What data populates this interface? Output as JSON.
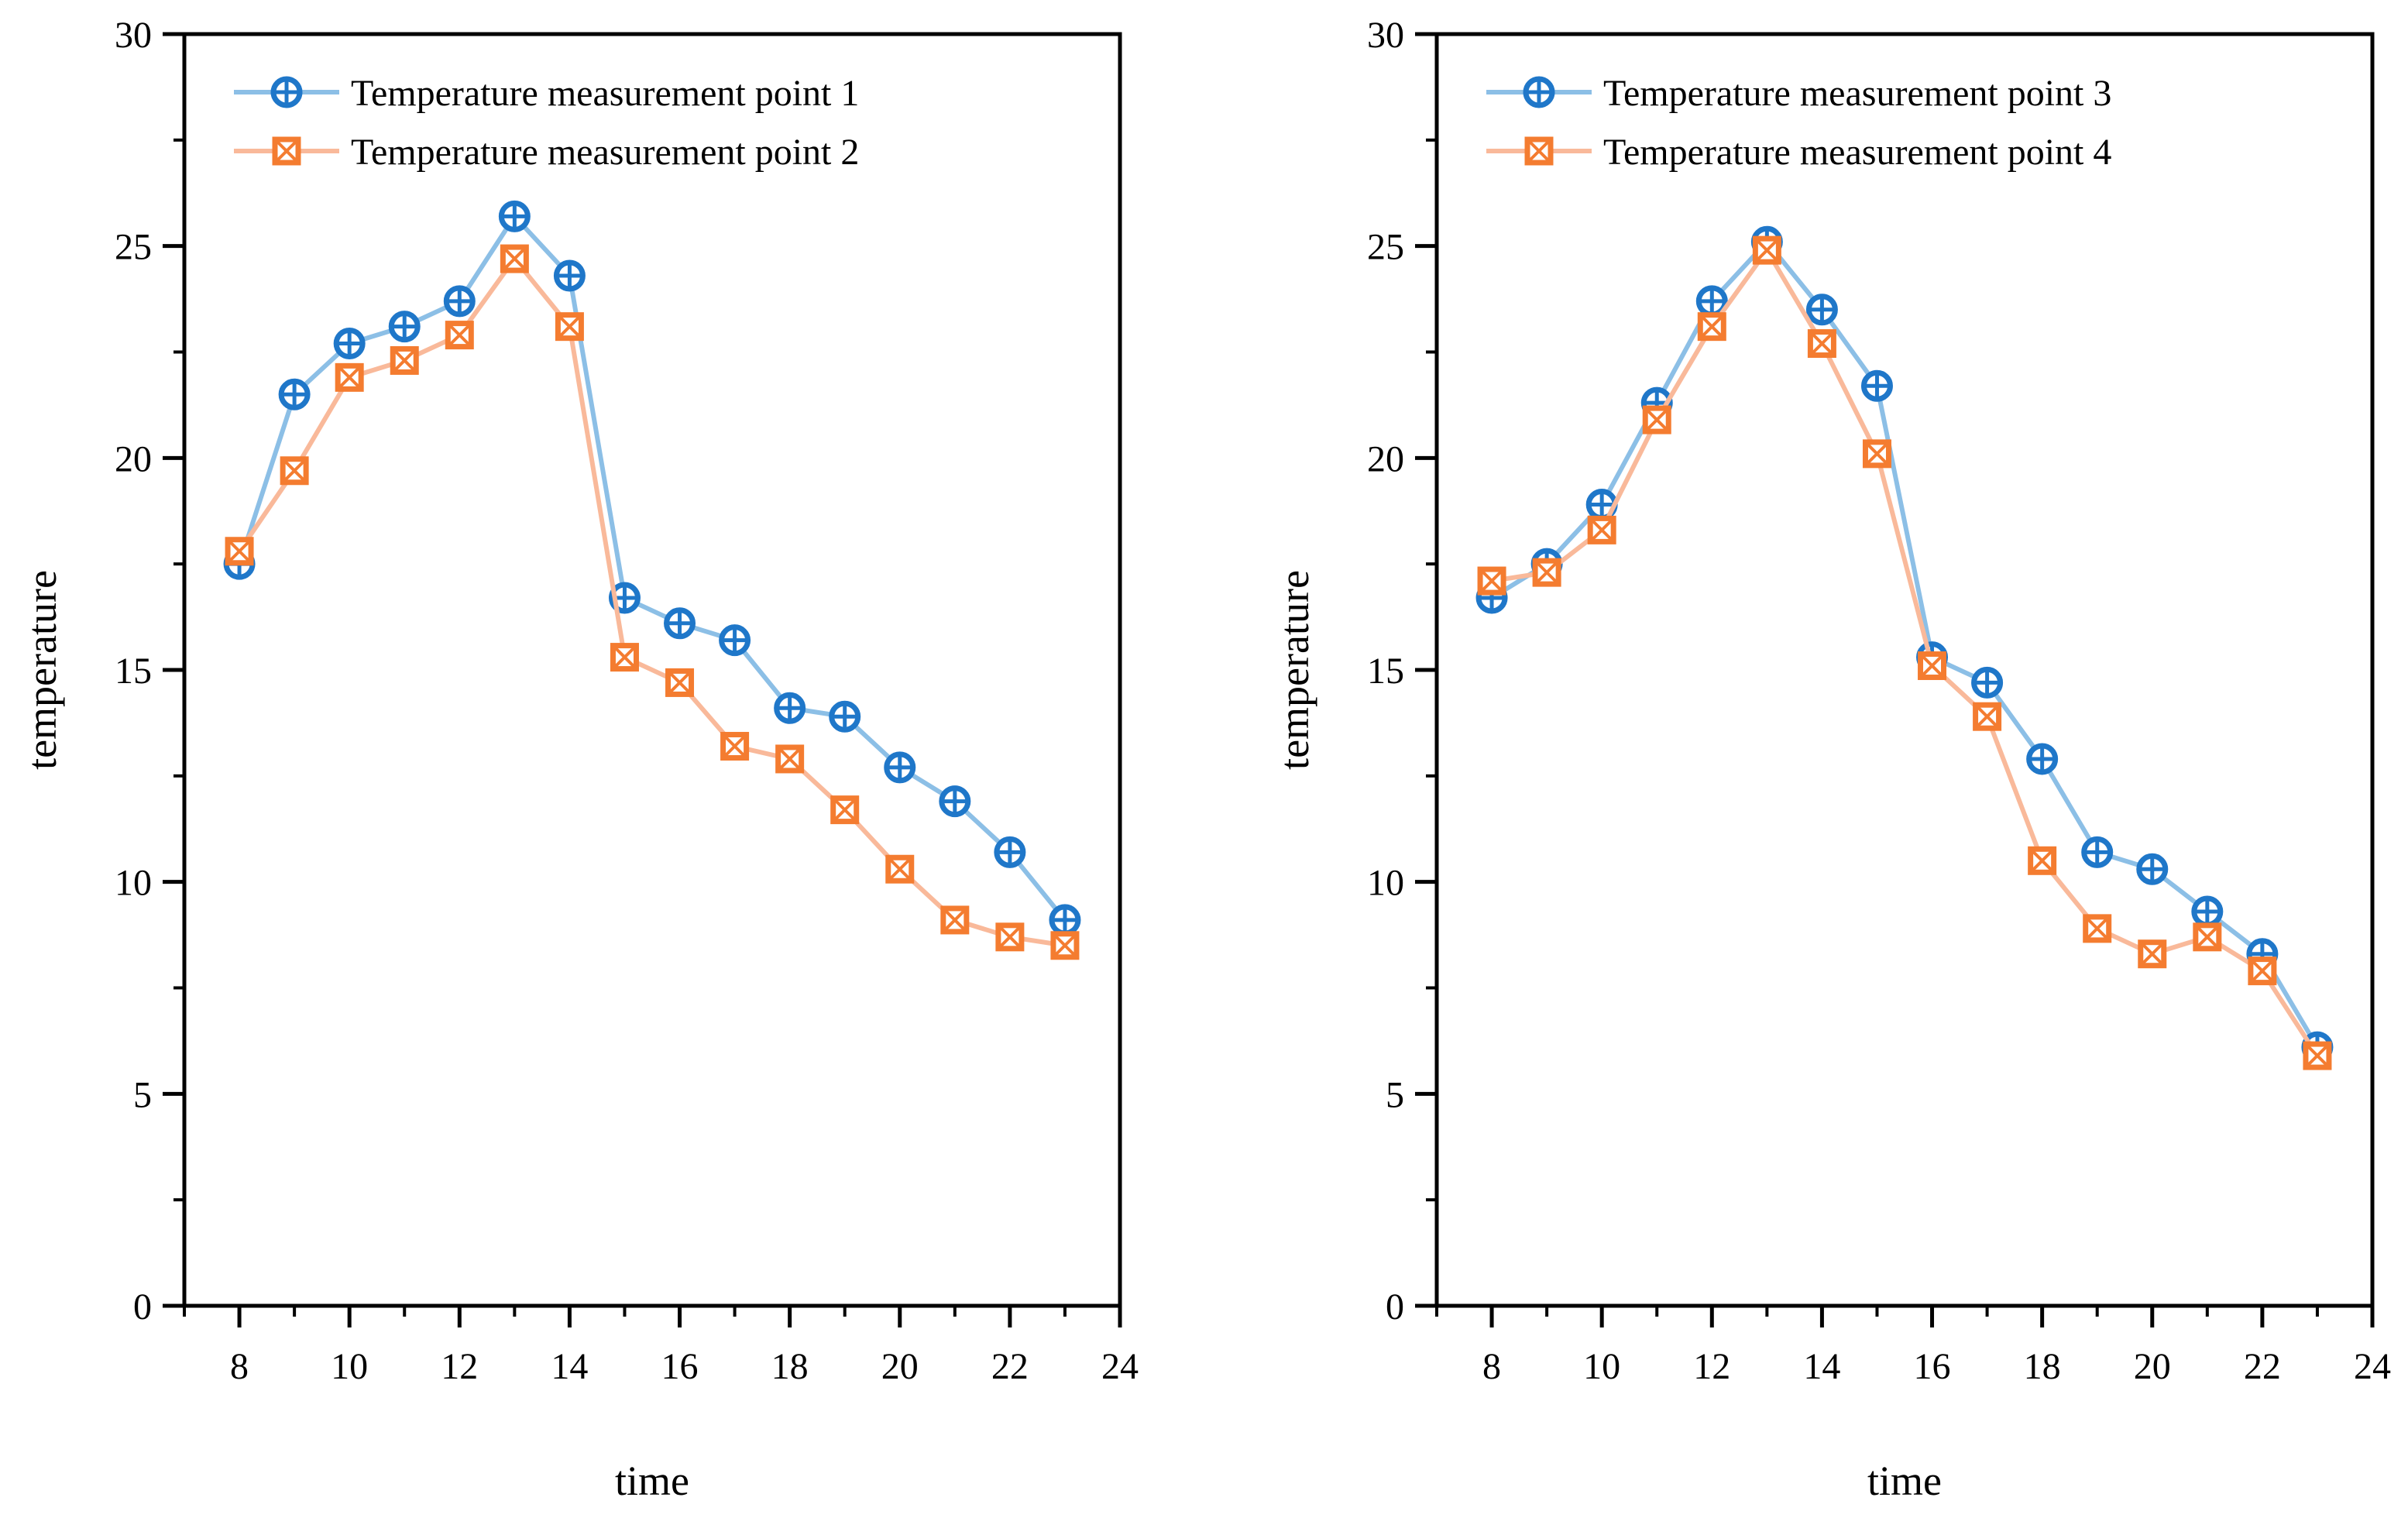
{
  "colors": {
    "series_a": "#1F77C9",
    "series_a_line": "#8CBFE6",
    "series_b": "#F47C30",
    "series_b_line": "#F9B99A",
    "axis": "#000000"
  },
  "chart_data": [
    {
      "type": "line",
      "title": "",
      "xlabel": "time",
      "ylabel": "temperature",
      "xlim": [
        7,
        24
      ],
      "ylim": [
        0,
        30
      ],
      "xticks": [
        8,
        10,
        12,
        14,
        16,
        18,
        20,
        22,
        24
      ],
      "yticks": [
        0,
        5,
        10,
        15,
        20,
        25,
        30
      ],
      "legend_position": "top-left",
      "grid": false,
      "x": [
        8,
        9,
        10,
        11,
        12,
        13,
        14,
        15,
        16,
        17,
        18,
        19,
        20,
        21,
        22,
        23
      ],
      "series": [
        {
          "name": "Temperature measurement point 1",
          "marker": "circle-plus",
          "values": [
            17.5,
            21.5,
            22.7,
            23.1,
            23.7,
            25.7,
            24.3,
            16.7,
            16.1,
            15.7,
            14.1,
            13.9,
            12.7,
            11.9,
            10.7,
            9.1
          ]
        },
        {
          "name": "Temperature measurement point 2",
          "marker": "square-x",
          "values": [
            17.8,
            19.7,
            21.9,
            22.3,
            22.9,
            24.7,
            23.1,
            15.3,
            14.7,
            13.2,
            12.9,
            11.7,
            10.3,
            9.1,
            8.7,
            8.5
          ]
        }
      ]
    },
    {
      "type": "line",
      "title": "",
      "xlabel": "time",
      "ylabel": "temperature",
      "xlim": [
        7,
        24
      ],
      "ylim": [
        0,
        30
      ],
      "xticks": [
        8,
        10,
        12,
        14,
        16,
        18,
        20,
        22,
        24
      ],
      "yticks": [
        0,
        5,
        10,
        15,
        20,
        25,
        30
      ],
      "legend_position": "top-left",
      "grid": false,
      "x": [
        8,
        9,
        10,
        11,
        12,
        13,
        14,
        15,
        16,
        17,
        18,
        19,
        20,
        21,
        22,
        23
      ],
      "series": [
        {
          "name": "Temperature measurement point 3",
          "marker": "circle-plus",
          "values": [
            16.7,
            17.5,
            18.9,
            21.3,
            23.7,
            25.1,
            23.5,
            21.7,
            15.3,
            14.7,
            12.9,
            10.7,
            10.3,
            9.3,
            8.3,
            6.1
          ]
        },
        {
          "name": "Temperature measurement point 4",
          "marker": "square-x",
          "values": [
            17.1,
            17.3,
            18.3,
            20.9,
            23.1,
            24.9,
            22.7,
            20.1,
            15.1,
            13.9,
            10.5,
            8.9,
            8.3,
            8.7,
            7.9,
            5.9
          ]
        }
      ]
    }
  ]
}
